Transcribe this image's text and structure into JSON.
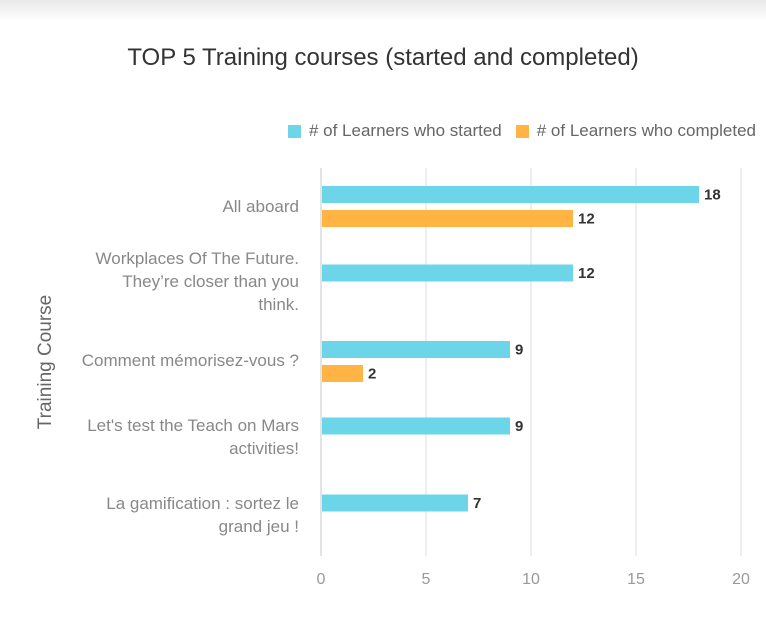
{
  "chart_data": {
    "type": "bar",
    "orientation": "horizontal",
    "title": "TOP 5 Training courses (started and completed)",
    "ylabel": "Training Course",
    "xlabel": "",
    "xlim": [
      0,
      20
    ],
    "xticks": [
      0,
      5,
      10,
      15,
      20
    ],
    "grid": true,
    "legend_position": "top-right",
    "categories": [
      "All aboard",
      "Workplaces Of The Future. They’re closer than you think.",
      "Comment mémorisez-vous ?",
      "Let's test the Teach on Mars activities!",
      "La gamification : sortez le grand jeu !"
    ],
    "category_lines": [
      [
        "All aboard"
      ],
      [
        "Workplaces Of The Future.",
        "They’re closer than you",
        "think."
      ],
      [
        "Comment mémorisez-vous ?"
      ],
      [
        "Let's test the Teach on Mars",
        "activities!"
      ],
      [
        "La gamification : sortez le",
        "grand jeu !"
      ]
    ],
    "series": [
      {
        "name": "# of Learners who started",
        "color": "#6dd5e8",
        "values": [
          18,
          12,
          9,
          9,
          7
        ]
      },
      {
        "name": "# of Learners who completed",
        "color": "#ffb444",
        "values": [
          12,
          null,
          2,
          null,
          null
        ]
      }
    ]
  }
}
